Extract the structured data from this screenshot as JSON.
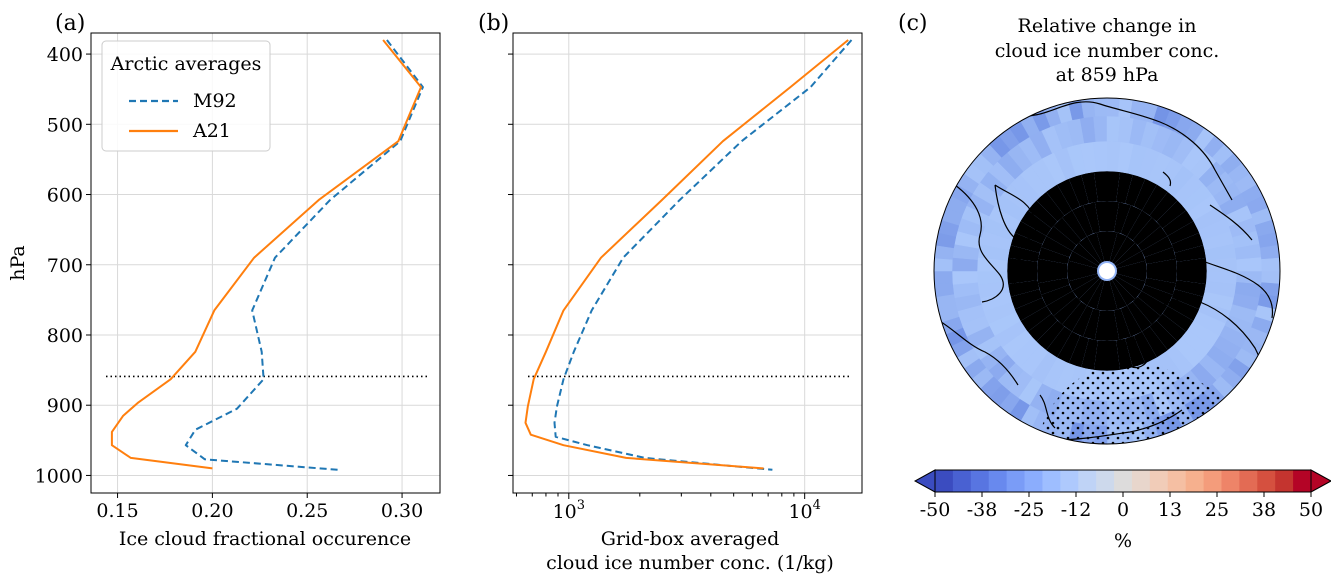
{
  "chart_data": [
    {
      "type": "line",
      "panel_label": "(a)",
      "xlabel": "Ice cloud fractional occurence",
      "ylabel": "hPa",
      "xlim": [
        0.136,
        0.32
      ],
      "ylim": [
        1025,
        370
      ],
      "y_inverted": true,
      "grid": true,
      "xticks": [
        0.15,
        0.2,
        0.25,
        0.3
      ],
      "xtick_labels": [
        "0.15",
        "0.20",
        "0.25",
        "0.30"
      ],
      "yticks": [
        400,
        500,
        600,
        700,
        800,
        900,
        1000
      ],
      "ytick_labels": [
        "400",
        "500",
        "600",
        "700",
        "800",
        "900",
        "1000"
      ],
      "legend": {
        "title": "Arctic averages",
        "placement": "top-left",
        "entries": [
          {
            "name": "M92",
            "style": "dashed",
            "color": "#1f77b4"
          },
          {
            "name": "A21",
            "style": "solid",
            "color": "#ff7f0e"
          }
        ]
      },
      "reference_line": {
        "y": 859,
        "style": "dotted",
        "color": "#000000"
      },
      "series": [
        {
          "name": "M92",
          "color": "#1f77b4",
          "style": "dashed",
          "points": [
            [
              0.292,
              380
            ],
            [
              0.311,
              447
            ],
            [
              0.299,
              524
            ],
            [
              0.262,
              608
            ],
            [
              0.233,
              690
            ],
            [
              0.221,
              765
            ],
            [
              0.226,
              824
            ],
            [
              0.227,
              863
            ],
            [
              0.213,
              905
            ],
            [
              0.191,
              935
            ],
            [
              0.186,
              957
            ],
            [
              0.196,
              977
            ],
            [
              0.266,
              992
            ]
          ]
        },
        {
          "name": "A21",
          "color": "#ff7f0e",
          "style": "solid",
          "points": [
            [
              0.29,
              380
            ],
            [
              0.31,
              447
            ],
            [
              0.298,
              524
            ],
            [
              0.256,
              608
            ],
            [
              0.222,
              690
            ],
            [
              0.201,
              765
            ],
            [
              0.191,
              824
            ],
            [
              0.178,
              863
            ],
            [
              0.161,
              896
            ],
            [
              0.153,
              915
            ],
            [
              0.147,
              938
            ],
            [
              0.147,
              957
            ],
            [
              0.157,
              975
            ],
            [
              0.2,
              990
            ]
          ]
        }
      ]
    },
    {
      "type": "line",
      "panel_label": "(b)",
      "xlabel_line1": "Grid-box averaged",
      "xlabel_line2": "cloud ice number conc. (1/kg)",
      "xscale": "log",
      "xlim": [
        580,
        17500
      ],
      "ylim": [
        1025,
        370
      ],
      "y_inverted": true,
      "grid": true,
      "xticks": [
        1000,
        10000
      ],
      "xtick_base": "10",
      "xtick_exponents": [
        "3",
        "4"
      ],
      "reference_line": {
        "y": 859,
        "style": "dotted",
        "color": "#000000"
      },
      "series": [
        {
          "name": "M92",
          "color": "#1f77b4",
          "style": "dashed",
          "points": [
            [
              15800,
              380
            ],
            [
              10600,
              447
            ],
            [
              5400,
              524
            ],
            [
              2950,
              608
            ],
            [
              1700,
              690
            ],
            [
              1250,
              765
            ],
            [
              1050,
              824
            ],
            [
              950,
              863
            ],
            [
              890,
              902
            ],
            [
              870,
              925
            ],
            [
              880,
              945
            ],
            [
              1200,
              957
            ],
            [
              2100,
              975
            ],
            [
              7300,
              992
            ]
          ]
        },
        {
          "name": "A21",
          "color": "#ff7f0e",
          "style": "solid",
          "points": [
            [
              15300,
              380
            ],
            [
              8700,
              447
            ],
            [
              4500,
              524
            ],
            [
              2480,
              608
            ],
            [
              1370,
              690
            ],
            [
              950,
              765
            ],
            [
              800,
              824
            ],
            [
              710,
              863
            ],
            [
              670,
              902
            ],
            [
              655,
              925
            ],
            [
              690,
              942
            ],
            [
              950,
              957
            ],
            [
              1750,
              975
            ],
            [
              6700,
              990
            ]
          ]
        }
      ]
    },
    {
      "type": "heatmap",
      "panel_label": "(c)",
      "projection": "north polar stereographic",
      "title_lines": [
        "Relative change in",
        "cloud ice number conc.",
        "at 859 hPa"
      ],
      "colorbar": {
        "colormap": "coolwarm",
        "range": [
          -50,
          50
        ],
        "extend": "both",
        "tick_labels": [
          "-50",
          "-38",
          "-25",
          "-12",
          "0",
          "13",
          "25",
          "38",
          "50"
        ],
        "label": "%",
        "colors": [
          "#3b4cc0",
          "#4961d2",
          "#5875e1",
          "#6889ee",
          "#7a9cf7",
          "#8badfd",
          "#9ebeff",
          "#aec9fd",
          "#bfd3f6",
          "#cdd9ec",
          "#dddcdc",
          "#e8d6cc",
          "#f1ccb8",
          "#f5bfa3",
          "#f6b08e",
          "#f49c7b",
          "#ee8468",
          "#e36b54",
          "#d5503f",
          "#c4342f",
          "#b40426"
        ]
      },
      "map_colors": {
        "background": "#93b4f6",
        "outer_ring": "#7393e6",
        "inner_ring": "#aac7fa",
        "center": "#d1daf0",
        "pole_hole": "#ffffff",
        "coastline": "#000000"
      }
    }
  ]
}
